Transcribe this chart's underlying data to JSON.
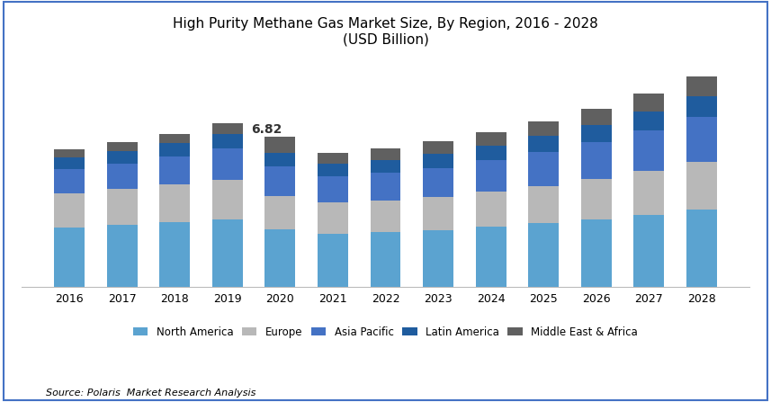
{
  "title_line1": "High Purity Methane Gas Market Size, By Region, 2016 - 2028",
  "title_line2": "(USD Billion)",
  "years": [
    2016,
    2017,
    2018,
    2019,
    2020,
    2021,
    2022,
    2023,
    2024,
    2025,
    2026,
    2027,
    2028
  ],
  "regions": [
    "North America",
    "Europe",
    "Asia Pacific",
    "Latin America",
    "Middle East & Africa"
  ],
  "colors": [
    "#5BA3D0",
    "#B8B8B8",
    "#4472C4",
    "#1F5C9E",
    "#606060"
  ],
  "data": {
    "North America": [
      2.7,
      2.82,
      2.95,
      3.08,
      2.6,
      2.42,
      2.48,
      2.58,
      2.72,
      2.88,
      3.05,
      3.25,
      3.5
    ],
    "Europe": [
      1.55,
      1.62,
      1.7,
      1.8,
      1.55,
      1.42,
      1.45,
      1.52,
      1.62,
      1.72,
      1.85,
      2.02,
      2.2
    ],
    "Asia Pacific": [
      1.1,
      1.18,
      1.28,
      1.42,
      1.35,
      1.2,
      1.25,
      1.32,
      1.42,
      1.55,
      1.68,
      1.85,
      2.05
    ],
    "Latin America": [
      0.55,
      0.58,
      0.62,
      0.68,
      0.62,
      0.55,
      0.58,
      0.62,
      0.68,
      0.72,
      0.78,
      0.85,
      0.92
    ],
    "Middle East & Africa": [
      0.35,
      0.38,
      0.42,
      0.48,
      0.7,
      0.52,
      0.55,
      0.58,
      0.62,
      0.68,
      0.75,
      0.82,
      0.9
    ]
  },
  "annotation_year": 2020,
  "annotation_label": "6.82",
  "source_text": "Source: Polaris  Market Research Analysis",
  "background_color": "#FFFFFF",
  "border_color": "#4472C4",
  "ylim": [
    0,
    10.5
  ],
  "bar_width": 0.58,
  "figsize": [
    8.57,
    4.47
  ],
  "dpi": 100
}
